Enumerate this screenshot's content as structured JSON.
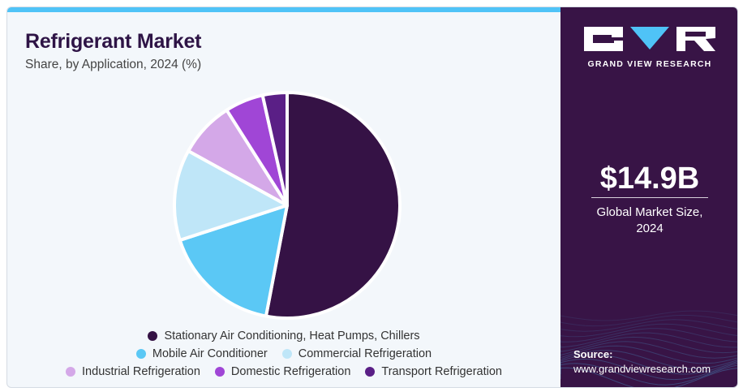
{
  "title": "Refrigerant Market",
  "subtitle": "Share, by Application, 2024 (%)",
  "brand": {
    "name": "GRAND VIEW RESEARCH",
    "logo_letters": [
      "G",
      "V",
      "R"
    ]
  },
  "highlight": {
    "value": "$14.9B",
    "caption_line1": "Global Market Size,",
    "caption_line2": "2024"
  },
  "source": {
    "label": "Source:",
    "url": "www.grandviewresearch.com"
  },
  "colors": {
    "accent": "#4fc3f7",
    "panel": "#381446",
    "title": "#2e1446"
  },
  "chart_data": {
    "type": "pie",
    "title": "Refrigerant Market",
    "subtitle": "Share, by Application, 2024 (%)",
    "start_angle_deg": 0,
    "direction": "clockwise",
    "legend_placement": "bottom",
    "slices": [
      {
        "label": "Stationary Air Conditioning, Heat Pumps, Chillers",
        "value": 53,
        "color": "#351245"
      },
      {
        "label": "Mobile Air Conditioner",
        "value": 17,
        "color": "#5bc8f5"
      },
      {
        "label": "Commercial Refrigeration",
        "value": 13,
        "color": "#bfe6f8"
      },
      {
        "label": "Industrial Refrigeration",
        "value": 8,
        "color": "#d4a8e8"
      },
      {
        "label": "Domestic Refrigeration",
        "value": 5.5,
        "color": "#a046d6"
      },
      {
        "label": "Transport Refrigeration",
        "value": 3.5,
        "color": "#5a1f86"
      }
    ],
    "legend_rows": [
      [
        0
      ],
      [
        1,
        2
      ],
      [
        3,
        4,
        5
      ]
    ]
  }
}
